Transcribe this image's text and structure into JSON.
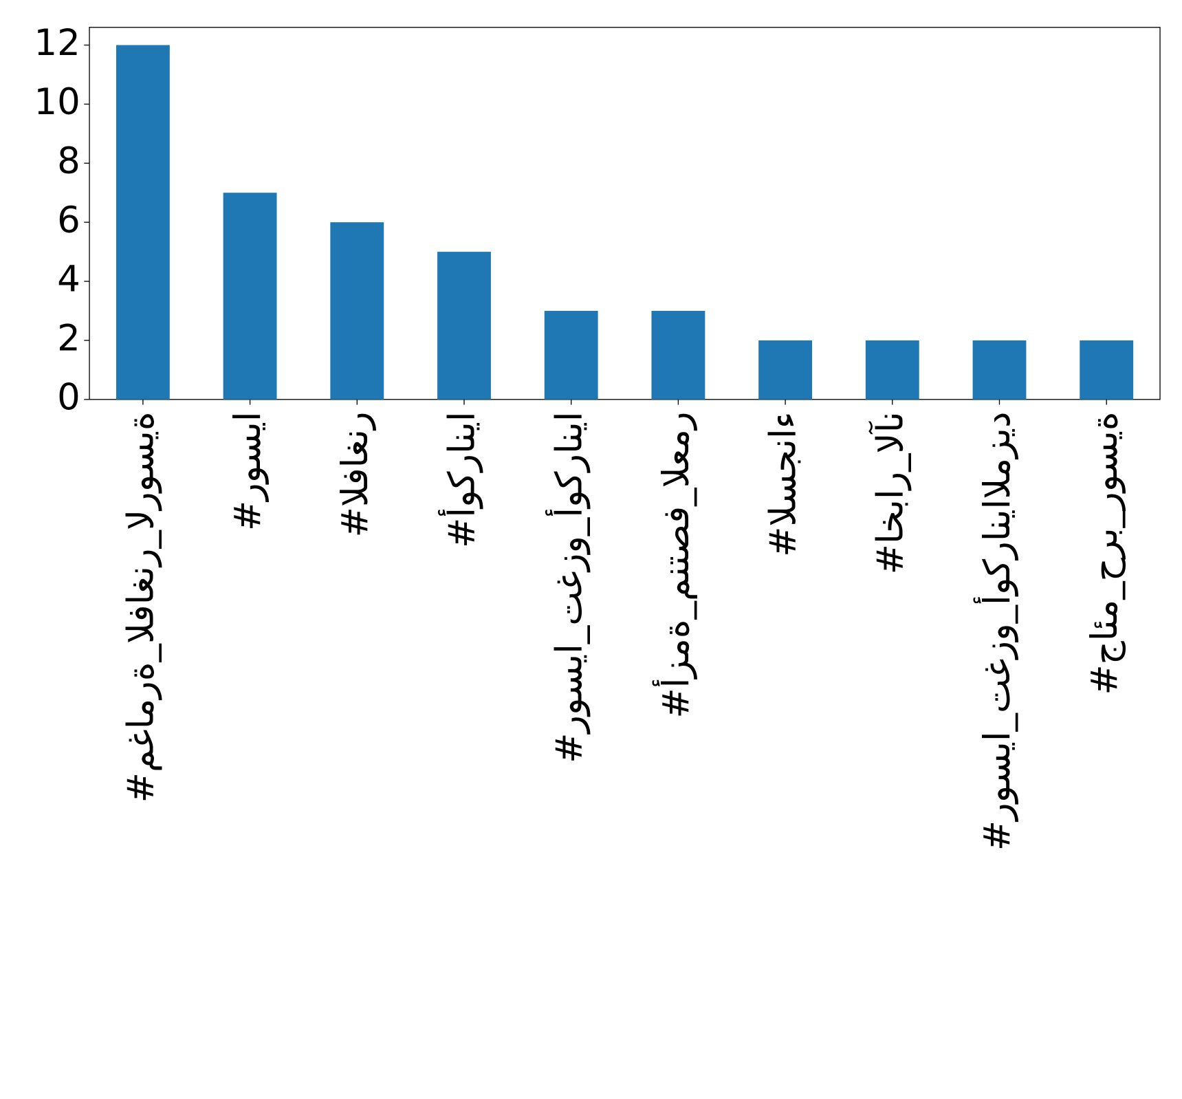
{
  "chart_data": {
    "type": "bar",
    "categories": [
      "#مغامرة_الفاغنر_الروسية",
      "#روسيا",
      "#الفاغنر",
      "#أوكرانيا",
      "#روسيا_تغزو_أوكرانيا",
      "#أزمة_منتصف_العمر",
      "#السجناء",
      "#اخبار_الآن",
      "#روسيا_تغزو_أوكرانياالمزيد",
      "#جائم_حرب_روسية"
    ],
    "values": [
      12,
      7,
      6,
      5,
      3,
      3,
      2,
      2,
      2,
      2
    ],
    "color": "#1f77b4",
    "ylim": [
      0,
      12.6
    ],
    "yticks": [
      0,
      2,
      4,
      6,
      8,
      10,
      12
    ],
    "grid": false
  }
}
